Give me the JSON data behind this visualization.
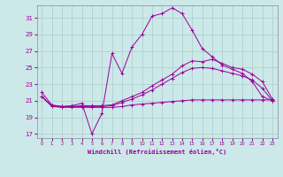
{
  "xlabel": "Windchill (Refroidissement éolien,°C)",
  "bg_color": "#cce8e8",
  "grid_color": "#aacccc",
  "line_color": "#990099",
  "x_ticks": [
    0,
    1,
    2,
    3,
    4,
    5,
    6,
    7,
    8,
    9,
    10,
    11,
    12,
    13,
    14,
    15,
    16,
    17,
    18,
    19,
    20,
    21,
    22,
    23
  ],
  "y_ticks": [
    17,
    19,
    21,
    23,
    25,
    27,
    29,
    31
  ],
  "ylim": [
    16.5,
    32.5
  ],
  "xlim": [
    -0.5,
    23.5
  ],
  "line1_x": [
    0,
    1,
    2,
    3,
    4,
    5,
    6,
    7,
    8,
    9,
    10,
    11,
    12,
    13,
    14,
    15,
    16,
    17,
    18,
    19,
    20,
    21,
    22,
    23
  ],
  "line1_y": [
    22.0,
    20.5,
    20.3,
    20.4,
    20.7,
    17.0,
    19.5,
    26.7,
    24.3,
    27.5,
    29.0,
    31.2,
    31.5,
    32.2,
    31.5,
    29.5,
    27.3,
    26.3,
    25.3,
    24.8,
    24.3,
    23.3,
    21.5,
    21.0
  ],
  "line2_x": [
    0,
    1,
    2,
    3,
    4,
    5,
    6,
    7,
    8,
    9,
    10,
    11,
    12,
    13,
    14,
    15,
    16,
    17,
    18,
    19,
    20,
    21,
    22,
    23
  ],
  "line2_y": [
    21.5,
    20.4,
    20.3,
    20.3,
    20.4,
    20.4,
    20.4,
    20.5,
    21.0,
    21.5,
    22.0,
    22.8,
    23.5,
    24.2,
    25.2,
    25.8,
    25.7,
    26.0,
    25.5,
    25.0,
    24.8,
    24.2,
    23.3,
    21.2
  ],
  "line3_x": [
    0,
    1,
    2,
    3,
    4,
    5,
    6,
    7,
    8,
    9,
    10,
    11,
    12,
    13,
    14,
    15,
    16,
    17,
    18,
    19,
    20,
    21,
    22,
    23
  ],
  "line3_y": [
    21.5,
    20.4,
    20.3,
    20.3,
    20.3,
    20.3,
    20.3,
    20.4,
    20.8,
    21.2,
    21.7,
    22.3,
    23.0,
    23.7,
    24.4,
    24.9,
    25.0,
    24.9,
    24.6,
    24.3,
    24.0,
    23.5,
    22.5,
    21.0
  ],
  "line4_x": [
    0,
    1,
    2,
    3,
    4,
    5,
    6,
    7,
    8,
    9,
    10,
    11,
    12,
    13,
    14,
    15,
    16,
    17,
    18,
    19,
    20,
    21,
    22,
    23
  ],
  "line4_y": [
    21.5,
    20.3,
    20.2,
    20.2,
    20.2,
    20.2,
    20.2,
    20.2,
    20.3,
    20.5,
    20.6,
    20.7,
    20.8,
    20.9,
    21.0,
    21.1,
    21.1,
    21.1,
    21.1,
    21.1,
    21.1,
    21.1,
    21.1,
    21.1
  ]
}
